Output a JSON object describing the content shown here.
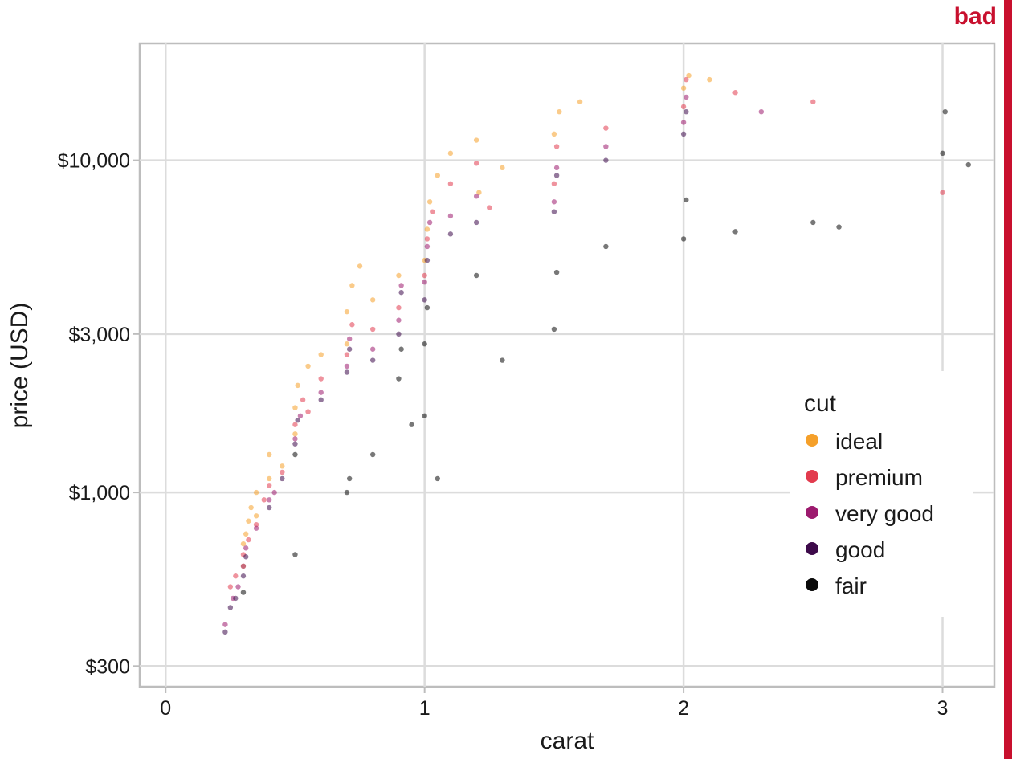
{
  "badge": {
    "text": "bad",
    "color": "#c8102e"
  },
  "chart_data": {
    "type": "scatter",
    "xlabel": "carat",
    "ylabel": "price (USD)",
    "xlim": [
      -0.1,
      3.2
    ],
    "ylim": [
      260,
      22500
    ],
    "y_scale": "log",
    "grid": true,
    "x_ticks": [
      0,
      1,
      2,
      3
    ],
    "x_tick_labels": [
      "0",
      "1",
      "2",
      "3"
    ],
    "y_ticks": [
      300,
      1000,
      3000,
      10000
    ],
    "y_tick_labels": [
      "$300",
      "$1,000",
      "$3,000",
      "$10,000"
    ],
    "legend": {
      "title": "cut",
      "placement": "right-center",
      "entries": [
        "ideal",
        "premium",
        "very good",
        "good",
        "fair"
      ]
    },
    "series": [
      {
        "name": "ideal",
        "color": "#f5a02a",
        "points": [
          [
            0.3,
            600
          ],
          [
            0.31,
            750
          ],
          [
            0.32,
            820
          ],
          [
            0.33,
            900
          ],
          [
            0.35,
            1000
          ],
          [
            0.4,
            1100
          ],
          [
            0.5,
            1500
          ],
          [
            0.5,
            1800
          ],
          [
            0.51,
            2100
          ],
          [
            0.55,
            2400
          ],
          [
            0.6,
            2600
          ],
          [
            0.7,
            2800
          ],
          [
            0.7,
            3500
          ],
          [
            0.72,
            4200
          ],
          [
            0.75,
            4800
          ],
          [
            1.0,
            5000
          ],
          [
            1.01,
            6200
          ],
          [
            1.02,
            7500
          ],
          [
            1.05,
            9000
          ],
          [
            1.1,
            10500
          ],
          [
            1.2,
            11500
          ],
          [
            1.21,
            8000
          ],
          [
            1.5,
            12000
          ],
          [
            1.52,
            14000
          ],
          [
            1.6,
            15000
          ],
          [
            2.0,
            16500
          ],
          [
            2.02,
            18000
          ],
          [
            2.1,
            17500
          ],
          [
            0.4,
            1300
          ],
          [
            0.45,
            1200
          ],
          [
            0.35,
            850
          ],
          [
            0.3,
            700
          ],
          [
            0.9,
            4500
          ],
          [
            1.3,
            9500
          ],
          [
            0.8,
            3800
          ]
        ]
      },
      {
        "name": "premium",
        "color": "#e23b4e",
        "points": [
          [
            0.25,
            520
          ],
          [
            0.3,
            650
          ],
          [
            0.32,
            720
          ],
          [
            0.38,
            950
          ],
          [
            0.4,
            1050
          ],
          [
            0.5,
            1600
          ],
          [
            0.53,
            1900
          ],
          [
            0.6,
            2200
          ],
          [
            0.7,
            2600
          ],
          [
            0.72,
            3200
          ],
          [
            0.9,
            3600
          ],
          [
            1.0,
            4500
          ],
          [
            1.01,
            5800
          ],
          [
            1.03,
            7000
          ],
          [
            1.1,
            8500
          ],
          [
            1.2,
            9800
          ],
          [
            1.5,
            8500
          ],
          [
            1.51,
            11000
          ],
          [
            1.7,
            12500
          ],
          [
            2.0,
            14500
          ],
          [
            2.01,
            17500
          ],
          [
            2.2,
            16000
          ],
          [
            2.5,
            15000
          ],
          [
            3.0,
            8000
          ],
          [
            0.45,
            1150
          ],
          [
            0.55,
            1750
          ],
          [
            1.25,
            7200
          ],
          [
            0.8,
            3100
          ],
          [
            0.35,
            800
          ],
          [
            0.27,
            560
          ]
        ]
      },
      {
        "name": "very good",
        "color": "#9c1a6e",
        "points": [
          [
            0.23,
            400
          ],
          [
            0.26,
            480
          ],
          [
            0.3,
            600
          ],
          [
            0.31,
            680
          ],
          [
            0.35,
            780
          ],
          [
            0.4,
            950
          ],
          [
            0.5,
            1450
          ],
          [
            0.52,
            1700
          ],
          [
            0.7,
            2400
          ],
          [
            0.71,
            2900
          ],
          [
            0.9,
            3300
          ],
          [
            0.91,
            4200
          ],
          [
            1.0,
            4300
          ],
          [
            1.01,
            5500
          ],
          [
            1.02,
            6500
          ],
          [
            1.2,
            7800
          ],
          [
            1.5,
            7500
          ],
          [
            1.51,
            9500
          ],
          [
            1.7,
            11000
          ],
          [
            2.0,
            13000
          ],
          [
            2.01,
            15500
          ],
          [
            2.3,
            14000
          ],
          [
            0.6,
            2000
          ],
          [
            0.8,
            2700
          ],
          [
            1.1,
            6800
          ],
          [
            0.42,
            1000
          ],
          [
            0.28,
            520
          ]
        ]
      },
      {
        "name": "good",
        "color": "#3d0a4a",
        "points": [
          [
            0.23,
            380
          ],
          [
            0.25,
            450
          ],
          [
            0.3,
            560
          ],
          [
            0.31,
            640
          ],
          [
            0.4,
            900
          ],
          [
            0.5,
            1400
          ],
          [
            0.51,
            1650
          ],
          [
            0.7,
            2300
          ],
          [
            0.71,
            2700
          ],
          [
            0.9,
            3000
          ],
          [
            0.91,
            4000
          ],
          [
            1.0,
            3800
          ],
          [
            1.01,
            5000
          ],
          [
            1.1,
            6000
          ],
          [
            1.5,
            7000
          ],
          [
            1.51,
            9000
          ],
          [
            1.7,
            10000
          ],
          [
            2.0,
            12000
          ],
          [
            2.01,
            14000
          ],
          [
            0.6,
            1900
          ],
          [
            0.8,
            2500
          ],
          [
            1.2,
            6500
          ],
          [
            0.45,
            1100
          ],
          [
            0.27,
            480
          ]
        ]
      },
      {
        "name": "fair",
        "color": "#0a0a0a",
        "points": [
          [
            0.3,
            500
          ],
          [
            0.5,
            650
          ],
          [
            0.5,
            1300
          ],
          [
            0.7,
            1000
          ],
          [
            0.71,
            1100
          ],
          [
            0.9,
            2200
          ],
          [
            0.91,
            2700
          ],
          [
            1.0,
            2800
          ],
          [
            1.0,
            1700
          ],
          [
            1.01,
            3600
          ],
          [
            1.05,
            1100
          ],
          [
            1.2,
            4500
          ],
          [
            1.5,
            3100
          ],
          [
            1.51,
            4600
          ],
          [
            1.7,
            5500
          ],
          [
            2.0,
            5800
          ],
          [
            2.01,
            7600
          ],
          [
            2.2,
            6100
          ],
          [
            2.5,
            6500
          ],
          [
            2.6,
            6300
          ],
          [
            3.0,
            10500
          ],
          [
            3.01,
            14000
          ],
          [
            3.1,
            9700
          ],
          [
            1.3,
            2500
          ],
          [
            0.8,
            1300
          ],
          [
            0.95,
            1600
          ]
        ]
      }
    ]
  }
}
